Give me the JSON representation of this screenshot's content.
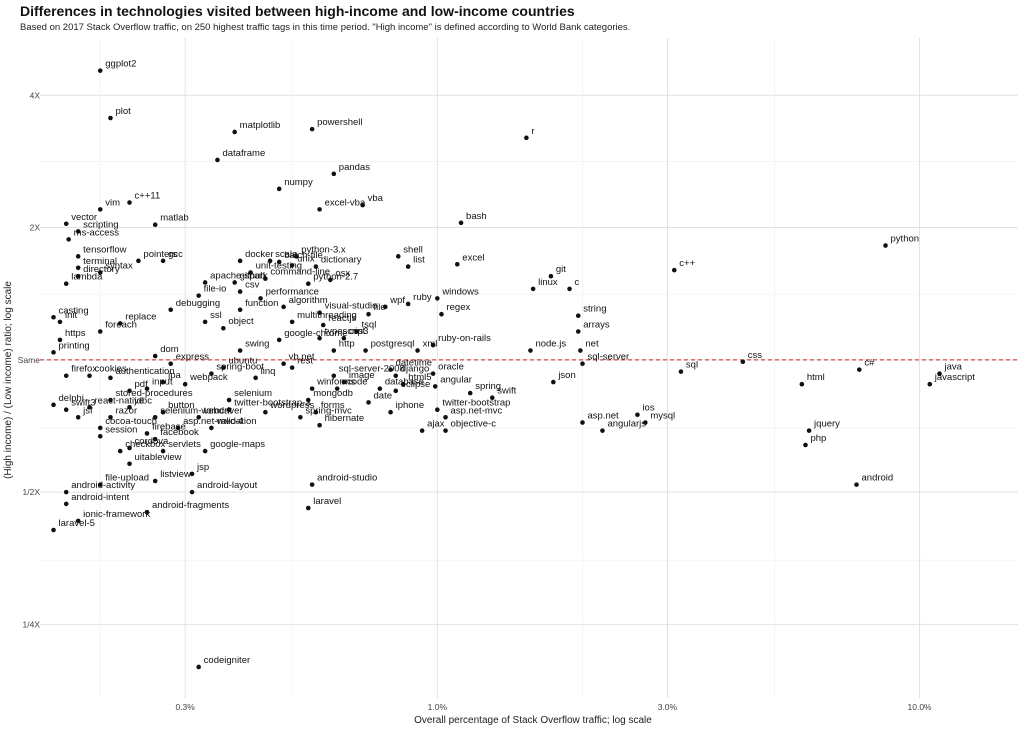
{
  "chart_data": {
    "type": "scatter",
    "title": "Differences in technologies visited between high-income and low-income countries",
    "subtitle": "Based on 2017 Stack Overflow traffic, on 250 highest traffic tags in this time period. \"High income\" is defined according to World Bank categories.",
    "xlabel": "Overall percentage of Stack Overflow traffic; log scale",
    "ylabel": "(High income) / (Low income) ratio; log scale",
    "x_scale": "log",
    "y_scale": "log",
    "xlim": [
      0.15,
      16
    ],
    "ylim": [
      0.17,
      5.4
    ],
    "x_ticks": [
      {
        "value": 0.3,
        "label": "0.3%"
      },
      {
        "value": 1,
        "label": "1.0%"
      },
      {
        "value": 3,
        "label": "3.0%"
      },
      {
        "value": 10,
        "label": "10.0%"
      }
    ],
    "y_ticks": [
      {
        "value": 0.25,
        "label": "1/4X"
      },
      {
        "value": 0.5,
        "label": "1/2X"
      },
      {
        "value": 1,
        "label": "Same"
      },
      {
        "value": 2,
        "label": "2X"
      },
      {
        "value": 4,
        "label": "4X"
      }
    ],
    "reference_line": {
      "y": 1,
      "color": "#cc2222",
      "style": "dashed"
    },
    "grid": true,
    "point_color": "#111111",
    "points": [
      {
        "label": "ggplot2",
        "x": 0.2,
        "y": 4.55
      },
      {
        "label": "plot",
        "x": 0.21,
        "y": 3.55
      },
      {
        "label": "matplotlib",
        "x": 0.38,
        "y": 3.3
      },
      {
        "label": "powershell",
        "x": 0.55,
        "y": 3.35
      },
      {
        "label": "r",
        "x": 1.53,
        "y": 3.2
      },
      {
        "label": "dataframe",
        "x": 0.35,
        "y": 2.85
      },
      {
        "label": "pandas",
        "x": 0.61,
        "y": 2.65
      },
      {
        "label": "numpy",
        "x": 0.47,
        "y": 2.45
      },
      {
        "label": "vba",
        "x": 0.7,
        "y": 2.25
      },
      {
        "label": "excel-vba",
        "x": 0.57,
        "y": 2.2
      },
      {
        "label": "c++11",
        "x": 0.23,
        "y": 2.28
      },
      {
        "label": "vim",
        "x": 0.2,
        "y": 2.2
      },
      {
        "label": "matlab",
        "x": 0.26,
        "y": 2.03
      },
      {
        "label": "bash",
        "x": 1.12,
        "y": 2.05
      },
      {
        "label": "vector",
        "x": 0.17,
        "y": 2.04
      },
      {
        "label": "scripting",
        "x": 0.18,
        "y": 1.96
      },
      {
        "label": "ms-access",
        "x": 0.172,
        "y": 1.88
      },
      {
        "label": "python",
        "x": 8.5,
        "y": 1.82
      },
      {
        "label": "shell",
        "x": 0.83,
        "y": 1.72
      },
      {
        "label": "excel",
        "x": 1.1,
        "y": 1.65
      },
      {
        "label": "list",
        "x": 0.87,
        "y": 1.63
      },
      {
        "label": "dictionary",
        "x": 0.56,
        "y": 1.63
      },
      {
        "label": "python-3.x",
        "x": 0.51,
        "y": 1.72
      },
      {
        "label": "batch-file",
        "x": 0.47,
        "y": 1.67
      },
      {
        "label": "unix",
        "x": 0.5,
        "y": 1.64
      },
      {
        "label": "scala",
        "x": 0.45,
        "y": 1.68
      },
      {
        "label": "docker",
        "x": 0.39,
        "y": 1.68
      },
      {
        "label": "tensorflow",
        "x": 0.18,
        "y": 1.72
      },
      {
        "label": "pointers",
        "x": 0.24,
        "y": 1.68
      },
      {
        "label": "gcc",
        "x": 0.27,
        "y": 1.68
      },
      {
        "label": "terminal",
        "x": 0.18,
        "y": 1.62
      },
      {
        "label": "syntax",
        "x": 0.2,
        "y": 1.58
      },
      {
        "label": "c++",
        "x": 3.1,
        "y": 1.6
      },
      {
        "label": "git",
        "x": 1.72,
        "y": 1.55
      },
      {
        "label": "c",
        "x": 1.88,
        "y": 1.45
      },
      {
        "label": "linux",
        "x": 1.58,
        "y": 1.45
      },
      {
        "label": "osx",
        "x": 0.6,
        "y": 1.52
      },
      {
        "label": "python-2.7",
        "x": 0.54,
        "y": 1.49
      },
      {
        "label": "command-line",
        "x": 0.44,
        "y": 1.53
      },
      {
        "label": "unit-testing",
        "x": 0.41,
        "y": 1.58
      },
      {
        "label": "apache-spark",
        "x": 0.33,
        "y": 1.5
      },
      {
        "label": "github",
        "x": 0.38,
        "y": 1.5
      },
      {
        "label": "lambda",
        "x": 0.17,
        "y": 1.49
      },
      {
        "label": "directory",
        "x": 0.18,
        "y": 1.55
      },
      {
        "label": "csv",
        "x": 0.39,
        "y": 1.43
      },
      {
        "label": "file-io",
        "x": 0.32,
        "y": 1.4
      },
      {
        "label": "windows",
        "x": 1.0,
        "y": 1.38
      },
      {
        "label": "ruby",
        "x": 0.87,
        "y": 1.34
      },
      {
        "label": "wpf",
        "x": 0.78,
        "y": 1.32
      },
      {
        "label": "performance",
        "x": 0.43,
        "y": 1.38
      },
      {
        "label": "regex",
        "x": 1.02,
        "y": 1.27
      },
      {
        "label": "string",
        "x": 1.96,
        "y": 1.26
      },
      {
        "label": "arrays",
        "x": 1.96,
        "y": 1.16
      },
      {
        "label": "algorithm",
        "x": 0.48,
        "y": 1.32
      },
      {
        "label": "visual-studio",
        "x": 0.57,
        "y": 1.28
      },
      {
        "label": "file",
        "x": 0.72,
        "y": 1.27
      },
      {
        "label": "multithreading",
        "x": 0.5,
        "y": 1.22
      },
      {
        "label": "reactjs",
        "x": 0.58,
        "y": 1.2
      },
      {
        "label": "ssl",
        "x": 0.33,
        "y": 1.22
      },
      {
        "label": "object",
        "x": 0.36,
        "y": 1.18
      },
      {
        "label": "debugging",
        "x": 0.28,
        "y": 1.3
      },
      {
        "label": "function",
        "x": 0.39,
        "y": 1.3
      },
      {
        "label": "tsql",
        "x": 0.68,
        "y": 1.16
      },
      {
        "label": "css3",
        "x": 0.64,
        "y": 1.12
      },
      {
        "label": "typescript",
        "x": 0.57,
        "y": 1.12
      },
      {
        "label": "google-chrome",
        "x": 0.47,
        "y": 1.11
      },
      {
        "label": "ruby-on-rails",
        "x": 0.98,
        "y": 1.08
      },
      {
        "label": "node.js",
        "x": 1.56,
        "y": 1.05
      },
      {
        "label": "net",
        "x": 1.98,
        "y": 1.05
      },
      {
        "label": "xml",
        "x": 0.91,
        "y": 1.05
      },
      {
        "label": "postgresql",
        "x": 0.71,
        "y": 1.05
      },
      {
        "label": "http",
        "x": 0.61,
        "y": 1.05
      },
      {
        "label": "css",
        "x": 4.3,
        "y": 0.99
      },
      {
        "label": "sql-server",
        "x": 2.0,
        "y": 0.98
      },
      {
        "label": "sql",
        "x": 3.2,
        "y": 0.94
      },
      {
        "label": "c#",
        "x": 7.5,
        "y": 0.95
      },
      {
        "label": "java",
        "x": 11.0,
        "y": 0.93
      },
      {
        "label": "javascript",
        "x": 10.5,
        "y": 0.88
      },
      {
        "label": "html",
        "x": 5.7,
        "y": 0.88
      },
      {
        "label": "json",
        "x": 1.74,
        "y": 0.89
      },
      {
        "label": "oracle",
        "x": 0.98,
        "y": 0.93
      },
      {
        "label": "datetime",
        "x": 0.8,
        "y": 0.95
      },
      {
        "label": "django",
        "x": 0.82,
        "y": 0.92
      },
      {
        "label": "angular",
        "x": 0.99,
        "y": 0.87
      },
      {
        "label": "html5",
        "x": 0.85,
        "y": 0.88
      },
      {
        "label": "image",
        "x": 0.64,
        "y": 0.89
      },
      {
        "label": "eclipse",
        "x": 0.82,
        "y": 0.85
      },
      {
        "label": "database",
        "x": 0.76,
        "y": 0.86
      },
      {
        "label": "xcode",
        "x": 0.62,
        "y": 0.86
      },
      {
        "label": "swift",
        "x": 1.3,
        "y": 0.82
      },
      {
        "label": "spring",
        "x": 1.17,
        "y": 0.84
      },
      {
        "label": "sql-server-2008",
        "x": 0.61,
        "y": 0.92
      },
      {
        "label": "rest",
        "x": 0.5,
        "y": 0.96
      },
      {
        "label": "vb.net",
        "x": 0.48,
        "y": 0.98
      },
      {
        "label": "linq",
        "x": 0.42,
        "y": 0.91
      },
      {
        "label": "winforms",
        "x": 0.55,
        "y": 0.86
      },
      {
        "label": "date",
        "x": 0.72,
        "y": 0.8
      },
      {
        "label": "mongodb",
        "x": 0.54,
        "y": 0.81
      },
      {
        "label": "twitter-bootstrap",
        "x": 1.0,
        "y": 0.77
      },
      {
        "label": "ios",
        "x": 2.6,
        "y": 0.75
      },
      {
        "label": "asp.net-mvc",
        "x": 1.04,
        "y": 0.74
      },
      {
        "label": "iphone",
        "x": 0.8,
        "y": 0.76
      },
      {
        "label": "asp.net",
        "x": 2.0,
        "y": 0.72
      },
      {
        "label": "mysql",
        "x": 2.7,
        "y": 0.72
      },
      {
        "label": "angularjs",
        "x": 2.2,
        "y": 0.69
      },
      {
        "label": "jquery",
        "x": 5.9,
        "y": 0.69
      },
      {
        "label": "php",
        "x": 5.8,
        "y": 0.64
      },
      {
        "label": "android",
        "x": 7.4,
        "y": 0.52
      },
      {
        "label": "ajax",
        "x": 0.93,
        "y": 0.69
      },
      {
        "label": "objective-c",
        "x": 1.04,
        "y": 0.69
      },
      {
        "label": "hibernate",
        "x": 0.57,
        "y": 0.71
      },
      {
        "label": "spring-mvc",
        "x": 0.52,
        "y": 0.74
      },
      {
        "label": "forms",
        "x": 0.56,
        "y": 0.76
      },
      {
        "label": "wordpress",
        "x": 0.44,
        "y": 0.76
      },
      {
        "label": "selenium",
        "x": 0.37,
        "y": 0.81
      },
      {
        "label": "tomcat",
        "x": 0.32,
        "y": 0.74
      },
      {
        "label": "twitter-bootstrap-3",
        "x": 0.37,
        "y": 0.77
      },
      {
        "label": "ubuntu",
        "x": 0.36,
        "y": 0.96
      },
      {
        "label": "swing",
        "x": 0.39,
        "y": 1.05
      },
      {
        "label": "spring-boot",
        "x": 0.34,
        "y": 0.93
      },
      {
        "label": "express",
        "x": 0.28,
        "y": 0.98
      },
      {
        "label": "dom",
        "x": 0.26,
        "y": 1.02
      },
      {
        "label": "jpa",
        "x": 0.27,
        "y": 0.89
      },
      {
        "label": "webpack",
        "x": 0.3,
        "y": 0.88
      },
      {
        "label": "validation",
        "x": 0.34,
        "y": 0.7
      },
      {
        "label": "asp.net-mvc-4",
        "x": 0.29,
        "y": 0.7
      },
      {
        "label": "facebook",
        "x": 0.26,
        "y": 0.66
      },
      {
        "label": "google-maps",
        "x": 0.33,
        "y": 0.62
      },
      {
        "label": "servlets",
        "x": 0.27,
        "y": 0.62
      },
      {
        "label": "firebase",
        "x": 0.25,
        "y": 0.68
      },
      {
        "label": "jsp",
        "x": 0.31,
        "y": 0.55
      },
      {
        "label": "listview",
        "x": 0.26,
        "y": 0.53
      },
      {
        "label": "android-layout",
        "x": 0.31,
        "y": 0.5
      },
      {
        "label": "android-studio",
        "x": 0.55,
        "y": 0.52
      },
      {
        "label": "laravel",
        "x": 0.54,
        "y": 0.46
      },
      {
        "label": "android-fragments",
        "x": 0.25,
        "y": 0.45
      },
      {
        "label": "uitableview",
        "x": 0.23,
        "y": 0.58
      },
      {
        "label": "checkbox",
        "x": 0.22,
        "y": 0.62
      },
      {
        "label": "cordova",
        "x": 0.23,
        "y": 0.63
      },
      {
        "label": "session",
        "x": 0.2,
        "y": 0.67
      },
      {
        "label": "cocoa-touch",
        "x": 0.2,
        "y": 0.7
      },
      {
        "label": "razor",
        "x": 0.21,
        "y": 0.74
      },
      {
        "label": "jsf",
        "x": 0.18,
        "y": 0.74
      },
      {
        "label": "button",
        "x": 0.27,
        "y": 0.76
      },
      {
        "label": "jdbc",
        "x": 0.23,
        "y": 0.78
      },
      {
        "label": "react-native",
        "x": 0.19,
        "y": 0.78
      },
      {
        "label": "swift3",
        "x": 0.17,
        "y": 0.77
      },
      {
        "label": "delphi",
        "x": 0.16,
        "y": 0.79
      },
      {
        "label": "stored-procedures",
        "x": 0.21,
        "y": 0.81
      },
      {
        "label": "pdf",
        "x": 0.23,
        "y": 0.85
      },
      {
        "label": "input",
        "x": 0.25,
        "y": 0.86
      },
      {
        "label": "firefox",
        "x": 0.17,
        "y": 0.92
      },
      {
        "label": "cookies",
        "x": 0.19,
        "y": 0.92
      },
      {
        "label": "authentication",
        "x": 0.21,
        "y": 0.91
      },
      {
        "label": "printing",
        "x": 0.16,
        "y": 1.04
      },
      {
        "label": "https",
        "x": 0.165,
        "y": 1.11
      },
      {
        "label": "casting",
        "x": 0.16,
        "y": 1.25
      },
      {
        "label": "init",
        "x": 0.165,
        "y": 1.22
      },
      {
        "label": "foreach",
        "x": 0.2,
        "y": 1.16
      },
      {
        "label": "replace",
        "x": 0.22,
        "y": 1.21
      },
      {
        "label": "selenium-webdriver",
        "x": 0.26,
        "y": 0.74
      },
      {
        "label": "ionic-framework",
        "x": 0.18,
        "y": 0.43
      },
      {
        "label": "android-activity",
        "x": 0.17,
        "y": 0.5
      },
      {
        "label": "android-intent",
        "x": 0.17,
        "y": 0.47
      },
      {
        "label": "file-upload",
        "x": 0.2,
        "y": 0.52
      },
      {
        "label": "laravel-5",
        "x": 0.16,
        "y": 0.41
      },
      {
        "label": "codeigniter",
        "x": 0.32,
        "y": 0.2
      }
    ]
  }
}
